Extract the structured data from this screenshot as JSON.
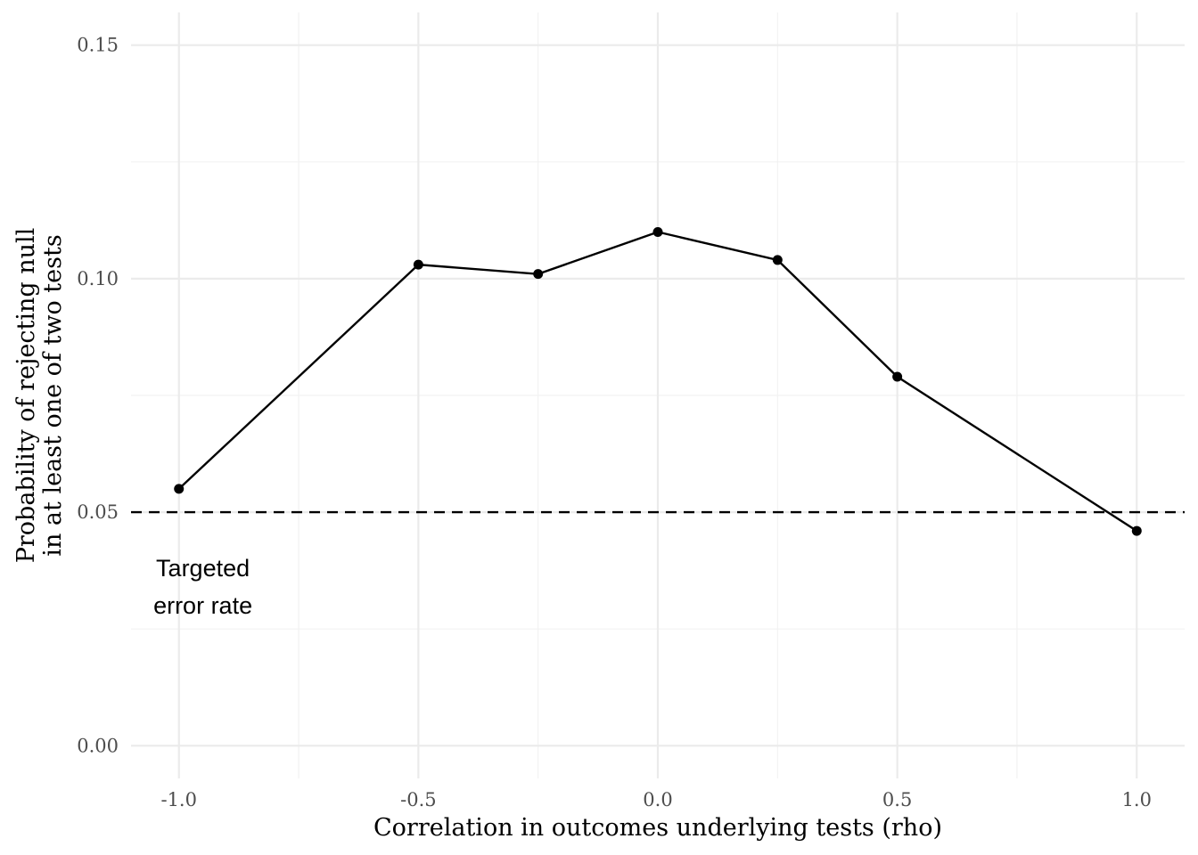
{
  "chart_data": {
    "type": "line",
    "xlabel": "Correlation in outcomes underlying tests (rho)",
    "ylabel_lines": [
      "Probability of rejecting null",
      "in at least one of two tests"
    ],
    "xlim": [
      -1.1,
      1.1
    ],
    "ylim": [
      -0.007,
      0.157
    ],
    "x_ticks": [
      {
        "value": -1.0,
        "label": "-1.0"
      },
      {
        "value": -0.5,
        "label": "-0.5"
      },
      {
        "value": 0.0,
        "label": "0.0"
      },
      {
        "value": 0.5,
        "label": "0.5"
      },
      {
        "value": 1.0,
        "label": "1.0"
      }
    ],
    "x_minor_ticks": [
      -0.75,
      -0.25,
      0.25,
      0.75
    ],
    "y_ticks": [
      {
        "value": 0.0,
        "label": "0.00"
      },
      {
        "value": 0.05,
        "label": "0.05"
      },
      {
        "value": 0.1,
        "label": "0.10"
      },
      {
        "value": 0.15,
        "label": "0.15"
      }
    ],
    "y_minor_ticks": [
      0.025,
      0.075,
      0.125
    ],
    "grid": true,
    "series": [
      {
        "x": [
          -1.0,
          -0.5,
          -0.25,
          0.0,
          0.25,
          0.5,
          1.0
        ],
        "y": [
          0.055,
          0.103,
          0.101,
          0.11,
          0.104,
          0.079,
          0.046
        ],
        "color": "#000000",
        "marker": "circle"
      }
    ],
    "reference_line": {
      "y": 0.05,
      "style": "dashed",
      "color": "#000000"
    },
    "annotation": {
      "lines": [
        "Targeted",
        "error rate"
      ],
      "x": -0.95,
      "y": [
        0.038,
        0.03
      ]
    }
  }
}
